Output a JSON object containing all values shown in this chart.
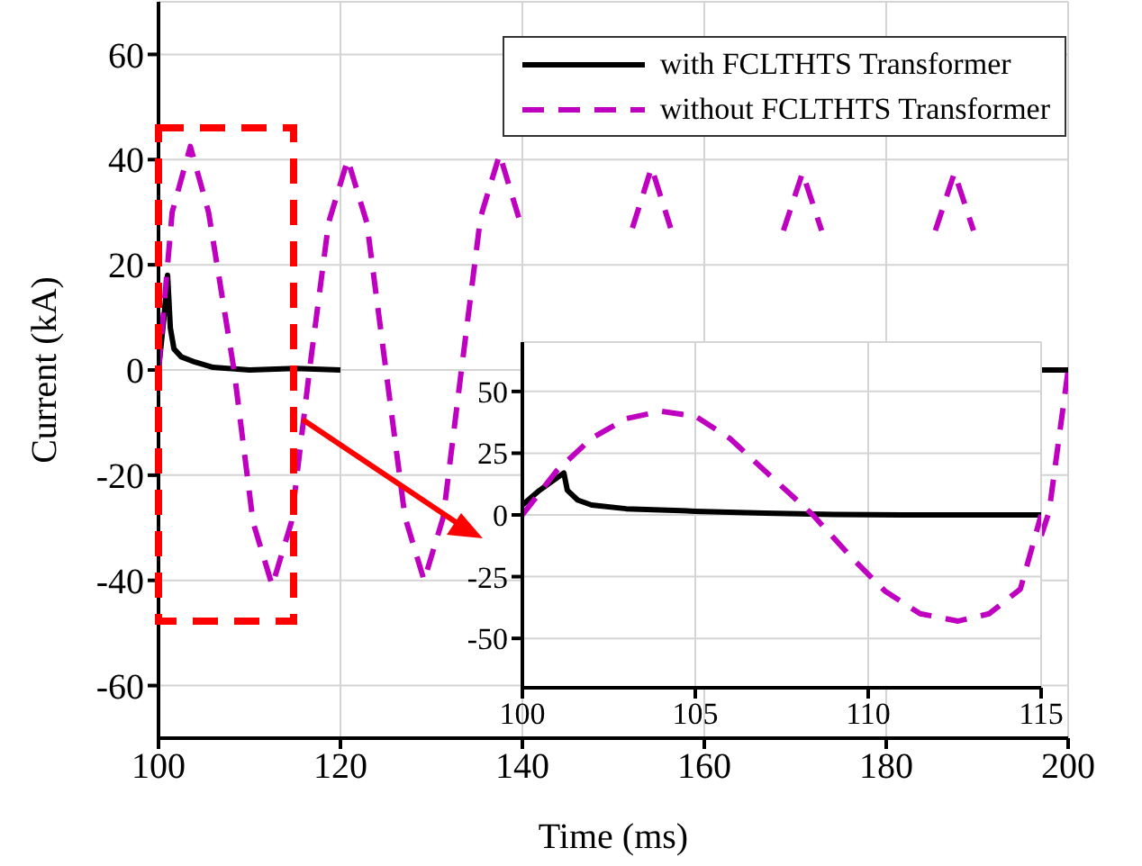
{
  "chart_data": [
    {
      "type": "line",
      "xlabel": "Time (ms)",
      "ylabel": "Current (kA)",
      "xlim": [
        100,
        200
      ],
      "xticks": [
        100,
        120,
        140,
        160,
        180,
        200
      ],
      "ylim": [
        -70,
        70
      ],
      "yticks": [
        -60,
        -40,
        -20,
        0,
        20,
        40,
        60
      ],
      "grid": true,
      "legend": "top right",
      "marker": "none",
      "series": [
        {
          "name": "with FCLTHTS Transformer",
          "color": "#000000",
          "line_style": "solid",
          "x": [
            100,
            100.6,
            101,
            101.3,
            101.7,
            102.5,
            104,
            106,
            110,
            115,
            120,
            140,
            160,
            180,
            197,
            200
          ],
          "values": [
            0,
            10,
            18,
            8,
            4,
            2.5,
            1.5,
            0.5,
            0,
            0.3,
            0,
            null,
            null,
            null,
            0,
            0
          ]
        },
        {
          "name": "without FCLTHTS Transformer",
          "color": "#c000c0",
          "line_style": "dashed",
          "x": [
            100,
            101.5,
            103.5,
            105.5,
            108.3,
            110.4,
            112.5,
            114.6,
            116.6,
            118.7,
            120.8,
            122.9,
            125,
            127.1,
            129.2,
            131.3,
            133.3,
            135.4,
            137.5,
            139.6,
            141.6,
            143.7,
            145.8,
            147.9,
            150,
            152.1,
            154.2,
            156.3,
            158.3,
            160.4,
            162.5,
            164.6,
            166.6,
            168.7,
            170.8,
            172.9,
            175,
            177.1,
            179.2,
            181.3,
            183.3,
            185.4,
            187.5,
            189.6,
            191.6,
            193.7,
            195.8,
            197.9,
            200
          ],
          "values": [
            0,
            30,
            42.5,
            30,
            0,
            -29,
            -41,
            -29,
            0,
            28,
            40,
            28,
            0,
            -28,
            -40,
            -28,
            0,
            29,
            41,
            29,
            null,
            null,
            null,
            null,
            null,
            27,
            38.5,
            27,
            null,
            null,
            null,
            null,
            null,
            26.5,
            37.5,
            26.5,
            null,
            null,
            null,
            null,
            null,
            26.5,
            37.5,
            26.5,
            null,
            null,
            -38,
            -27,
            0
          ]
        }
      ]
    },
    {
      "type": "line",
      "xlim": [
        100,
        115
      ],
      "xticks": [
        100,
        105,
        110,
        115
      ],
      "ylim": [
        -70,
        70
      ],
      "yticks": [
        -50,
        -25,
        0,
        25,
        50
      ],
      "grid": true,
      "marker": "none",
      "series": [
        {
          "color": "#000000",
          "line_style": "solid",
          "x": [
            100,
            100.5,
            101.2,
            101.3,
            101.6,
            102,
            103,
            105,
            107,
            109,
            111,
            115
          ],
          "values": [
            4,
            10,
            17,
            10,
            6,
            4,
            2.5,
            1.5,
            0.7,
            0.2,
            0,
            0
          ]
        },
        {
          "color": "#c000c0",
          "line_style": "dashed",
          "x": [
            100,
            101,
            102,
            103,
            104,
            105,
            106,
            107,
            108.4,
            109.5,
            110.5,
            111.5,
            112.6,
            113.5,
            114.4,
            115
          ],
          "values": [
            0,
            18,
            31,
            39,
            42,
            40,
            31,
            18,
            0,
            -17,
            -31,
            -40,
            -43,
            -40,
            -30,
            0
          ]
        }
      ]
    }
  ]
}
